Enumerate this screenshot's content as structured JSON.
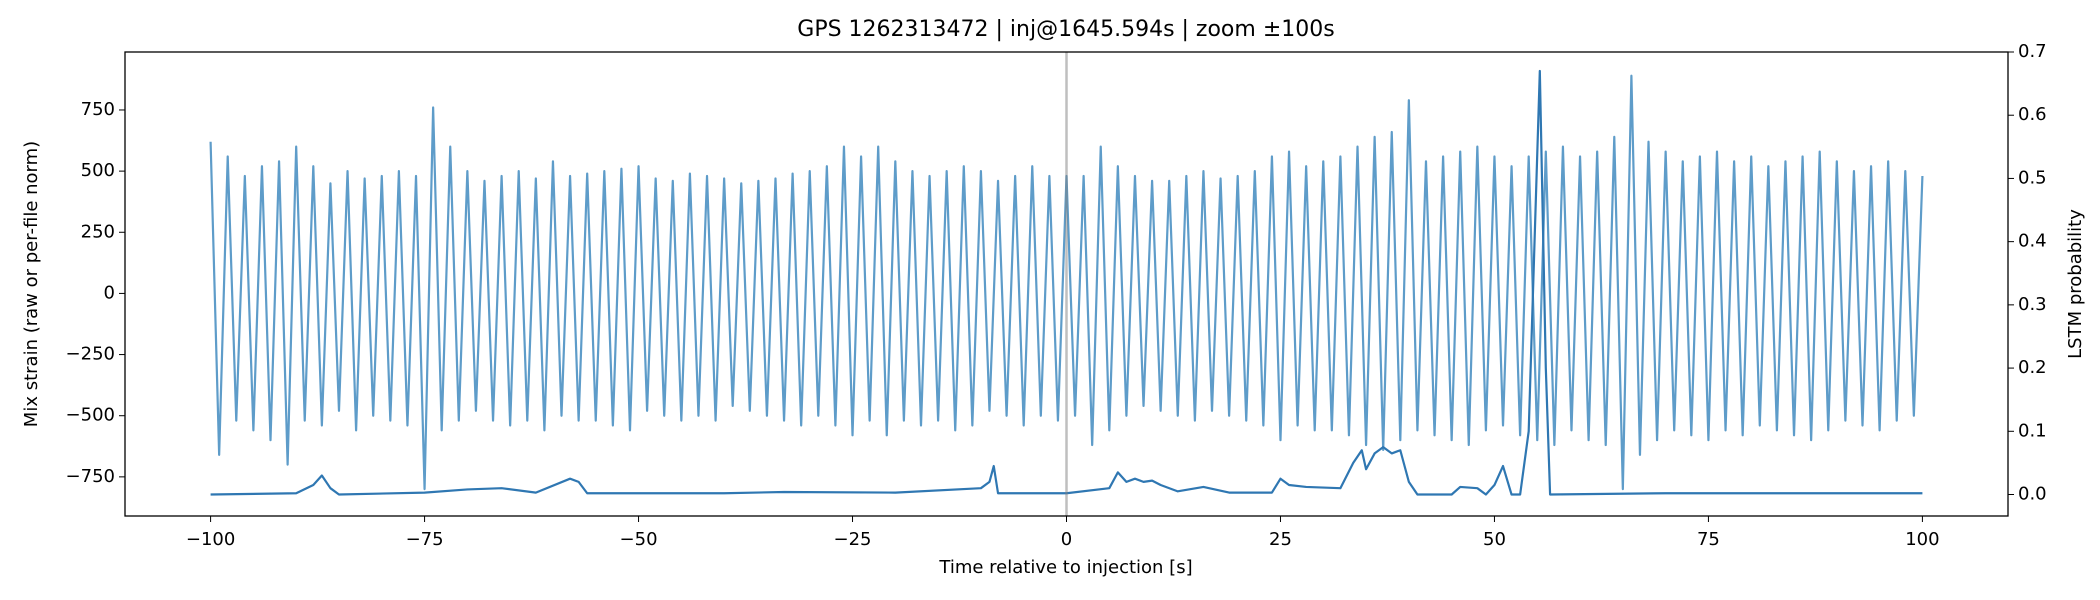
{
  "chart_data": {
    "type": "line",
    "title": "GPS 1262313472 | inj@1645.594s | zoom ±100s",
    "xlabel": "Time relative to injection [s]",
    "ylabel": "Mix strain (raw or per-file norm)",
    "y2label": "LSTM probability",
    "xlim": [
      -110,
      110
    ],
    "ylim": [
      -910,
      987
    ],
    "y2lim": [
      -0.034,
      0.7
    ],
    "xticks": [
      {
        "value": -100,
        "label": "−100"
      },
      {
        "value": -75,
        "label": "−75"
      },
      {
        "value": -50,
        "label": "−50"
      },
      {
        "value": -25,
        "label": "−25"
      },
      0,
      25,
      50,
      75,
      100
    ],
    "yticks": [
      {
        "value": -750,
        "label": "−750"
      },
      {
        "value": -500,
        "label": "−500"
      },
      {
        "value": -250,
        "label": "−250"
      },
      0,
      250,
      500,
      750
    ],
    "y2ticks": [
      {
        "value": 0,
        "label": "0.0"
      },
      0.1,
      0.2,
      0.3,
      0.4,
      0.5,
      0.6,
      0.7
    ],
    "vline_x": 0,
    "series": [
      {
        "color": "#5e9cc9",
        "x": [
          -100,
          -99,
          -98,
          -97,
          -96,
          -95,
          -94,
          -93,
          -92,
          -91,
          -90,
          -89,
          -88,
          -87,
          -86,
          -85,
          -84,
          -83,
          -82,
          -81,
          -80,
          -79,
          -78,
          -77,
          -76,
          -75,
          -74,
          -73,
          -72,
          -71,
          -70,
          -69,
          -68,
          -67,
          -66,
          -65,
          -64,
          -63,
          -62,
          -61,
          -60,
          -59,
          -58,
          -57,
          -56,
          -55,
          -54,
          -53,
          -52,
          -51,
          -50,
          -49,
          -48,
          -47,
          -46,
          -45,
          -44,
          -43,
          -42,
          -41,
          -40,
          -39,
          -38,
          -37,
          -36,
          -35,
          -34,
          -33,
          -32,
          -31,
          -30,
          -29,
          -28,
          -27,
          -26,
          -25,
          -24,
          -23,
          -22,
          -21,
          -20,
          -19,
          -18,
          -17,
          -16,
          -15,
          -14,
          -13,
          -12,
          -11,
          -10,
          -9,
          -8,
          -7,
          -6,
          -5,
          -4,
          -3,
          -2,
          -1,
          0,
          1,
          2,
          3,
          4,
          5,
          6,
          7,
          8,
          9,
          10,
          11,
          12,
          13,
          14,
          15,
          16,
          17,
          18,
          19,
          20,
          21,
          22,
          23,
          24,
          25,
          26,
          27,
          28,
          29,
          30,
          31,
          32,
          33,
          34,
          35,
          36,
          37,
          38,
          39,
          40,
          41,
          42,
          43,
          44,
          45,
          46,
          47,
          48,
          49,
          50,
          51,
          52,
          53,
          54,
          55,
          56,
          57,
          58,
          59,
          60,
          61,
          62,
          63,
          64,
          65,
          66,
          67,
          68,
          69,
          70,
          71,
          72,
          73,
          74,
          75,
          76,
          77,
          78,
          79,
          80,
          81,
          82,
          83,
          84,
          85,
          86,
          87,
          88,
          89,
          90,
          91,
          92,
          93,
          94,
          95,
          96,
          97,
          98,
          99,
          100
        ],
        "values": [
          620,
          -660,
          560,
          -520,
          480,
          -560,
          520,
          -600,
          540,
          -700,
          600,
          -520,
          520,
          -540,
          450,
          -480,
          500,
          -560,
          470,
          -500,
          480,
          -520,
          500,
          -540,
          480,
          -800,
          760,
          -560,
          600,
          -520,
          500,
          -480,
          460,
          -520,
          480,
          -540,
          500,
          -520,
          470,
          -560,
          540,
          -500,
          480,
          -520,
          490,
          -520,
          500,
          -540,
          510,
          -560,
          520,
          -480,
          470,
          -500,
          460,
          -520,
          490,
          -500,
          480,
          -520,
          470,
          -460,
          450,
          -480,
          460,
          -500,
          470,
          -520,
          490,
          -540,
          500,
          -500,
          520,
          -540,
          600,
          -580,
          560,
          -520,
          600,
          -580,
          540,
          -520,
          500,
          -540,
          480,
          -520,
          500,
          -560,
          520,
          -540,
          500,
          -480,
          460,
          -500,
          480,
          -540,
          520,
          -500,
          480,
          -520,
          480,
          -500,
          480,
          -620,
          600,
          -560,
          520,
          -500,
          480,
          -460,
          460,
          -480,
          460,
          -500,
          480,
          -520,
          500,
          -480,
          470,
          -500,
          480,
          -520,
          500,
          -540,
          560,
          -600,
          580,
          -540,
          520,
          -560,
          540,
          -560,
          560,
          -580,
          600,
          -620,
          640,
          -640,
          660,
          -600,
          790,
          -560,
          540,
          -580,
          560,
          -600,
          580,
          -620,
          600,
          -560,
          560,
          -540,
          520,
          -580,
          560,
          -600,
          580,
          -620,
          600,
          -560,
          560,
          -600,
          580,
          -620,
          640,
          -800,
          890,
          -660,
          620,
          -600,
          580,
          -560,
          540,
          -580,
          560,
          -600,
          580,
          -560,
          540,
          -580,
          560,
          -540,
          520,
          -560,
          540,
          -580,
          560,
          -600,
          580,
          -560,
          540,
          -520,
          500,
          -540,
          520,
          -560,
          540,
          -520,
          500,
          -500,
          480
        ]
      },
      {
        "color": "#2f77b2",
        "axis": "y2",
        "x": [
          -100,
          -90,
          -88,
          -87,
          -86,
          -85,
          -75,
          -70,
          -66,
          -62,
          -58,
          -57,
          -56,
          -40,
          -33,
          -20,
          -10,
          -9,
          -8.5,
          -8,
          0,
          5,
          6,
          7,
          8,
          9,
          10,
          11,
          13,
          16,
          19,
          24,
          25,
          26,
          28,
          32,
          33.5,
          34.5,
          35,
          36,
          37,
          38,
          39,
          40,
          41,
          45,
          46,
          48,
          49,
          50,
          51,
          52,
          53,
          54,
          55.3,
          56,
          56.5,
          70,
          100
        ],
        "values": [
          0,
          0.002,
          0.015,
          0.03,
          0.01,
          0,
          0.003,
          0.008,
          0.01,
          0.003,
          0.025,
          0.02,
          0.002,
          0.002,
          0.004,
          0.003,
          0.01,
          0.02,
          0.045,
          0.002,
          0.002,
          0.01,
          0.035,
          0.02,
          0.025,
          0.02,
          0.022,
          0.015,
          0.005,
          0.012,
          0.003,
          0.003,
          0.025,
          0.015,
          0.012,
          0.01,
          0.05,
          0.07,
          0.04,
          0.065,
          0.075,
          0.065,
          0.07,
          0.02,
          0,
          0,
          0.012,
          0.01,
          0,
          0.015,
          0.045,
          0,
          0,
          0.1,
          0.67,
          0.2,
          0,
          0.002,
          0.002
        ]
      }
    ]
  }
}
